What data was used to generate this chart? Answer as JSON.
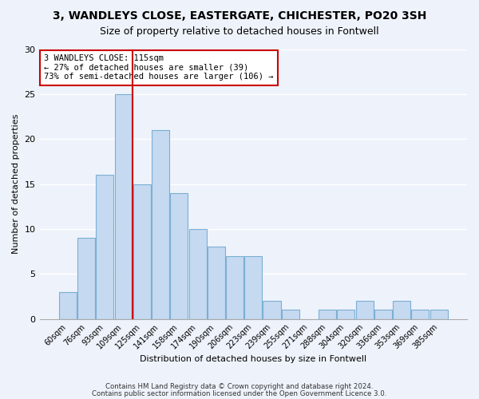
{
  "title1": "3, WANDLEYS CLOSE, EASTERGATE, CHICHESTER, PO20 3SH",
  "title2": "Size of property relative to detached houses in Fontwell",
  "xlabel": "Distribution of detached houses by size in Fontwell",
  "ylabel": "Number of detached properties",
  "bin_labels": [
    "60sqm",
    "76sqm",
    "93sqm",
    "109sqm",
    "125sqm",
    "141sqm",
    "158sqm",
    "174sqm",
    "190sqm",
    "206sqm",
    "223sqm",
    "239sqm",
    "255sqm",
    "271sqm",
    "288sqm",
    "304sqm",
    "320sqm",
    "336sqm",
    "353sqm",
    "369sqm",
    "385sqm"
  ],
  "bar_heights": [
    3,
    9,
    16,
    25,
    15,
    21,
    14,
    10,
    8,
    7,
    7,
    2,
    1,
    0,
    1,
    1,
    2,
    1,
    2,
    1,
    1
  ],
  "bar_color": "#c5d9f0",
  "bar_edge_color": "#7bafd4",
  "vline_x": 3.5,
  "vline_color": "#cc0000",
  "annotation_text": "3 WANDLEYS CLOSE: 115sqm\n← 27% of detached houses are smaller (39)\n73% of semi-detached houses are larger (106) →",
  "annotation_box_color": "#ffffff",
  "annotation_box_edge": "#cc0000",
  "ylim": [
    0,
    30
  ],
  "yticks": [
    0,
    5,
    10,
    15,
    20,
    25,
    30
  ],
  "footer1": "Contains HM Land Registry data © Crown copyright and database right 2024.",
  "footer2": "Contains public sector information licensed under the Open Government Licence 3.0.",
  "background_color": "#eef3fb"
}
